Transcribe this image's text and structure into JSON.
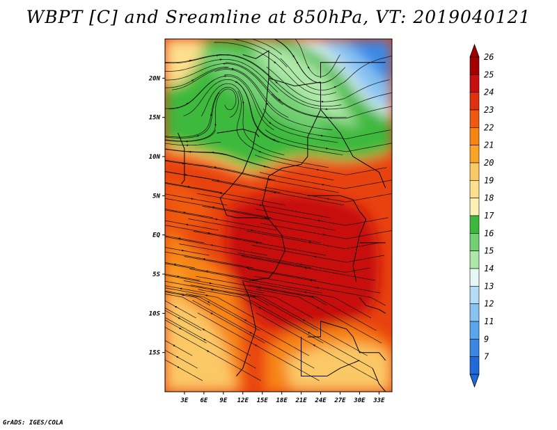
{
  "title": "WBPT [C] and Sreamline at 850hPa, VT: 2019040121",
  "footer": "GrADS: IGES/COLA",
  "map": {
    "lat_range": [
      -20,
      25
    ],
    "lon_range": [
      0,
      35
    ],
    "lat_ticks": [
      {
        "value": 20,
        "label": "20N"
      },
      {
        "value": 15,
        "label": "15N"
      },
      {
        "value": 10,
        "label": "10N"
      },
      {
        "value": 5,
        "label": "5N"
      },
      {
        "value": 0,
        "label": "EQ"
      },
      {
        "value": -5,
        "label": "5S"
      },
      {
        "value": -10,
        "label": "10S"
      },
      {
        "value": -15,
        "label": "15S"
      }
    ],
    "lon_ticks": [
      {
        "value": 3,
        "label": "3E"
      },
      {
        "value": 6,
        "label": "6E"
      },
      {
        "value": 9,
        "label": "9E"
      },
      {
        "value": 12,
        "label": "12E"
      },
      {
        "value": 15,
        "label": "15E"
      },
      {
        "value": 18,
        "label": "18E"
      },
      {
        "value": 21,
        "label": "21E"
      },
      {
        "value": 24,
        "label": "24E"
      },
      {
        "value": 27,
        "label": "27E"
      },
      {
        "value": 30,
        "label": "30E"
      },
      {
        "value": 33,
        "label": "33E"
      }
    ]
  },
  "colorbar": {
    "levels": [
      {
        "label": "26",
        "color": "#a50000"
      },
      {
        "label": "25",
        "color": "#c80f0f"
      },
      {
        "label": "24",
        "color": "#e0300e"
      },
      {
        "label": "23",
        "color": "#f05a10"
      },
      {
        "label": "22",
        "color": "#f78512"
      },
      {
        "label": "21",
        "color": "#f9a425"
      },
      {
        "label": "20",
        "color": "#fbc866"
      },
      {
        "label": "19",
        "color": "#fde08e"
      },
      {
        "label": "18",
        "color": "#fdf2b5"
      },
      {
        "label": "17",
        "color": "#3cb93c"
      },
      {
        "label": "16",
        "color": "#72d072"
      },
      {
        "label": "15",
        "color": "#aee8a8"
      },
      {
        "label": "14",
        "color": "#e6f8f4"
      },
      {
        "label": "13",
        "color": "#b4dcf7"
      },
      {
        "label": "12",
        "color": "#88c3f2"
      },
      {
        "label": "11",
        "color": "#5aa6ec"
      },
      {
        "label": "9",
        "color": "#3b88e4"
      },
      {
        "label": "7",
        "color": "#1f6ad8"
      }
    ],
    "top_cap_color": "#a50000",
    "bottom_cap_color": "#1f6ad8"
  }
}
